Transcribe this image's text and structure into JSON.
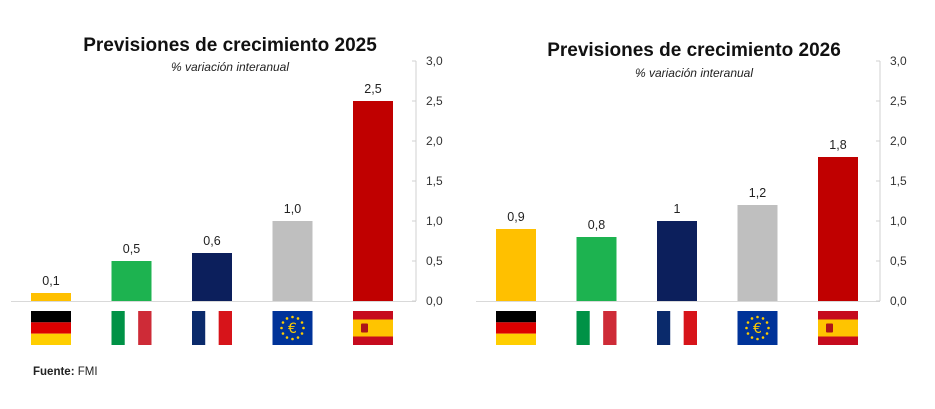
{
  "chart_data": [
    {
      "type": "bar",
      "title": "Previsiones de crecimiento 2025",
      "subtitle": "% variación interanual",
      "categories": [
        "Alemania",
        "Italia",
        "Francia",
        "Zona euro",
        "España"
      ],
      "values": [
        0.1,
        0.5,
        0.6,
        1.0,
        2.5
      ],
      "data_labels": [
        "0,1",
        "0,5",
        "0,6",
        "1,0",
        "2,5"
      ],
      "colors": [
        "#FFC000",
        "#1DB350",
        "#0C1F5C",
        "#BFBFBF",
        "#C00000"
      ],
      "ylim": [
        0,
        3
      ],
      "yticks": [
        "0,0",
        "0,5",
        "1,0",
        "1,5",
        "2,0",
        "2,5",
        "3,0"
      ],
      "y_axis_side": "right",
      "grid": false
    },
    {
      "type": "bar",
      "title": "Previsiones de crecimiento 2026",
      "subtitle": "% variación interanual",
      "categories": [
        "Alemania",
        "Italia",
        "Francia",
        "Zona euro",
        "España"
      ],
      "values": [
        0.9,
        0.8,
        1.0,
        1.2,
        1.8
      ],
      "data_labels": [
        "0,9",
        "0,8",
        "1",
        "1,2",
        "1,8"
      ],
      "colors": [
        "#FFC000",
        "#1DB350",
        "#0C1F5C",
        "#BFBFBF",
        "#C00000"
      ],
      "ylim": [
        0,
        3
      ],
      "yticks": [
        "0,0",
        "0,5",
        "1,0",
        "1,5",
        "2,0",
        "2,5",
        "3,0"
      ],
      "y_axis_side": "right",
      "grid": false
    }
  ],
  "flags": [
    "germany-flag-icon",
    "italy-flag-icon",
    "france-flag-icon",
    "eu-flag-icon",
    "spain-flag-icon"
  ],
  "source": {
    "label": "Fuente:",
    "value": "FMI"
  }
}
